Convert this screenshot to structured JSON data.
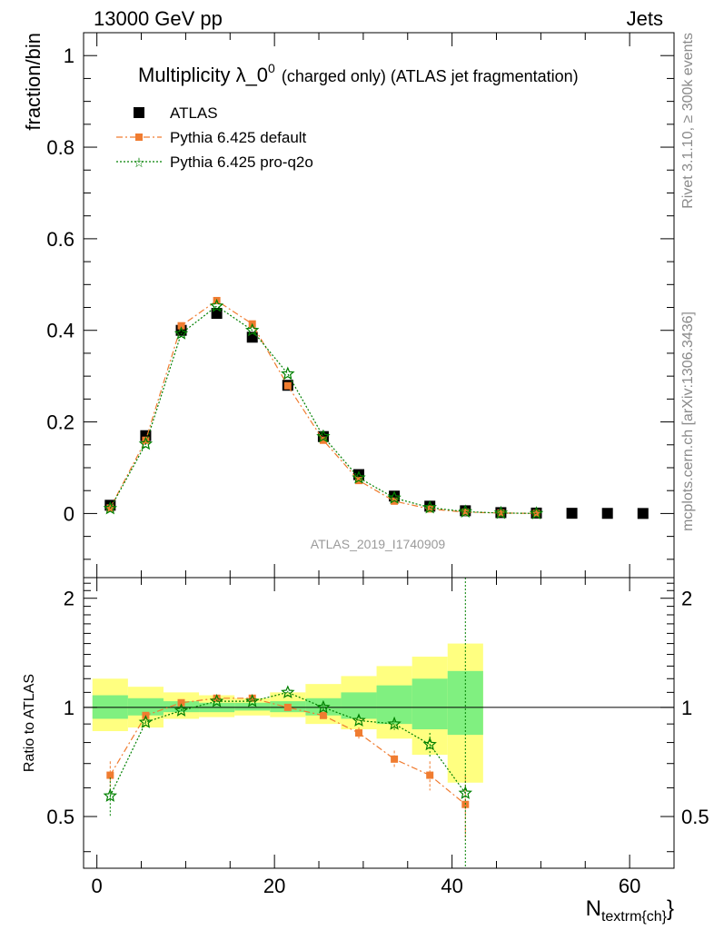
{
  "header": {
    "left": "13000 GeV pp",
    "right": "Jets"
  },
  "side_labels": {
    "rivet": "Rivet 3.1.10, ≥ 300k events",
    "mcplots": "mcplots.cern.ch [arXiv:1306.3436]"
  },
  "chart_data": [
    {
      "type": "scatter",
      "panel": "main",
      "title": "Multiplicity λ_0",
      "title_superscript": "0",
      "title_suffix": "(charged only) (ATLAS jet fragmentation)",
      "ylabel": "fraction/bin",
      "watermark": "ATLAS_2019_I1740909",
      "xlim": [
        -1.5,
        65
      ],
      "ylim": [
        -0.14,
        1.05
      ],
      "yticks": [
        0,
        0.2,
        0.4,
        0.6,
        0.8,
        1
      ],
      "ytick_labels": [
        "0",
        "0.2",
        "0.4",
        "0.6",
        "0.8",
        "1"
      ],
      "legend_position": "top-left",
      "series": [
        {
          "name": "ATLAS",
          "color": "#000000",
          "marker": "square",
          "x": [
            1.5,
            5.5,
            9.5,
            13.5,
            17.5,
            21.5,
            25.5,
            29.5,
            33.5,
            37.5,
            41.5,
            45.5,
            49.5,
            53.5,
            57.5,
            61.5
          ],
          "y": [
            0.018,
            0.17,
            0.4,
            0.437,
            0.385,
            0.28,
            0.168,
            0.085,
            0.038,
            0.016,
            0.006,
            0.002,
            0.001,
            0.0005,
            0.0003,
            0.0001
          ]
        },
        {
          "name": "Pythia 6.425 default",
          "color": "#f07c30",
          "marker": "square-small",
          "line": "dashdot",
          "x": [
            1.5,
            5.5,
            9.5,
            13.5,
            17.5,
            21.5,
            25.5,
            29.5,
            33.5,
            37.5,
            41.5,
            45.5,
            49.5
          ],
          "y": [
            0.012,
            0.16,
            0.41,
            0.465,
            0.414,
            0.279,
            0.16,
            0.072,
            0.027,
            0.01,
            0.003,
            0.001,
            0.0002
          ]
        },
        {
          "name": "Pythia 6.425 pro-q2o",
          "color": "#008000",
          "marker": "star",
          "line": "dotted",
          "x": [
            1.5,
            5.5,
            9.5,
            13.5,
            17.5,
            21.5,
            25.5,
            29.5,
            33.5,
            37.5,
            41.5,
            45.5,
            49.5
          ],
          "y": [
            0.011,
            0.152,
            0.393,
            0.453,
            0.4,
            0.305,
            0.168,
            0.078,
            0.034,
            0.013,
            0.004,
            0.001,
            0.0002
          ]
        }
      ]
    },
    {
      "type": "line",
      "panel": "ratio",
      "ylabel": "Ratio to ATLAS",
      "xlabel": "N",
      "xlabel_subscript": "textrm{ch}",
      "xlim": [
        -1.5,
        65
      ],
      "ylim": [
        0.36,
        2.28
      ],
      "log_y": true,
      "xticks": [
        0,
        20,
        40,
        60
      ],
      "xtick_labels": [
        "0",
        "20",
        "40",
        "60"
      ],
      "yticks": [
        0.5,
        1,
        2
      ],
      "ytick_labels": [
        "0.5",
        "1",
        "2"
      ],
      "reference_line": 1,
      "bands": {
        "x_edges": [
          -0.5,
          3.5,
          7.5,
          11.5,
          15.5,
          19.5,
          23.5,
          27.5,
          31.5,
          35.5,
          39.5,
          43.5
        ],
        "outer": {
          "color": "#ffff80",
          "lo": [
            0.86,
            0.88,
            0.93,
            0.94,
            0.95,
            0.94,
            0.9,
            0.87,
            0.82,
            0.74,
            0.62
          ],
          "hi": [
            1.2,
            1.14,
            1.1,
            1.08,
            1.06,
            1.1,
            1.16,
            1.22,
            1.3,
            1.38,
            1.5
          ]
        },
        "inner": {
          "color": "#80f080",
          "lo": [
            0.93,
            0.95,
            0.97,
            0.97,
            0.98,
            0.97,
            0.95,
            0.93,
            0.9,
            0.87,
            0.84
          ],
          "hi": [
            1.08,
            1.06,
            1.04,
            1.03,
            1.03,
            1.04,
            1.06,
            1.1,
            1.15,
            1.2,
            1.26
          ]
        }
      },
      "series": [
        {
          "name": "Pythia 6.425 default",
          "color": "#f07c30",
          "marker": "square-small",
          "line": "dashdot",
          "x": [
            1.5,
            5.5,
            9.5,
            13.5,
            17.5,
            21.5,
            25.5,
            29.5,
            33.5,
            37.5,
            41.5
          ],
          "y": [
            0.65,
            0.95,
            1.03,
            1.06,
            1.06,
            1.0,
            0.95,
            0.85,
            0.72,
            0.65,
            0.54
          ],
          "err": [
            0.06,
            0.01,
            0.01,
            0.01,
            0.01,
            0.01,
            0.02,
            0.03,
            0.04,
            0.06,
            0.11
          ]
        },
        {
          "name": "Pythia 6.425 pro-q2o",
          "color": "#008000",
          "marker": "star",
          "line": "dotted",
          "x": [
            1.5,
            5.5,
            9.5,
            13.5,
            17.5,
            21.5,
            25.5,
            29.5,
            33.5,
            37.5,
            41.5
          ],
          "y": [
            0.57,
            0.91,
            0.98,
            1.04,
            1.04,
            1.1,
            1.0,
            0.92,
            0.9,
            0.79,
            0.58
          ],
          "err": [
            0.07,
            0.01,
            0.01,
            0.01,
            0.01,
            0.01,
            0.02,
            0.03,
            0.04,
            0.06,
            2.0
          ]
        }
      ]
    }
  ]
}
